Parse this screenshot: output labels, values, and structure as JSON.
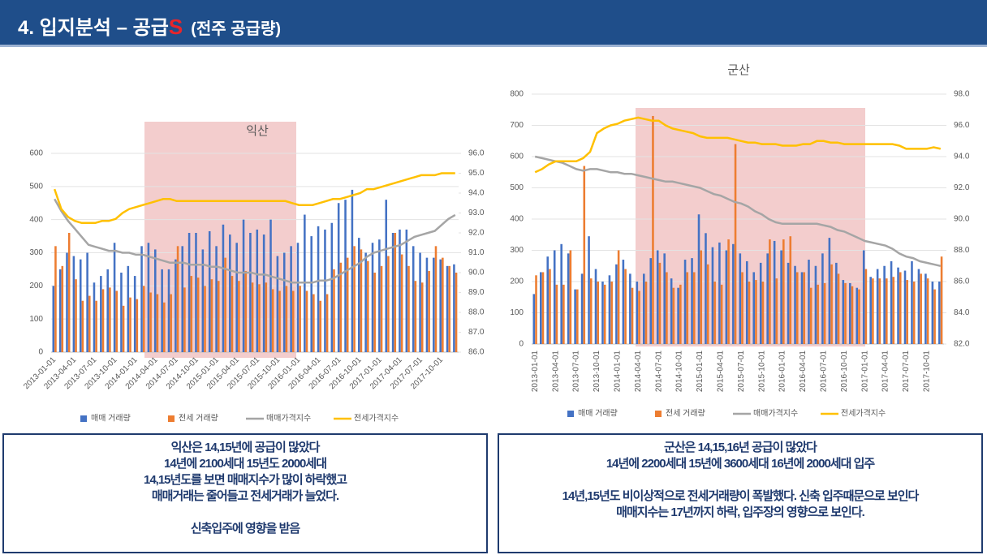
{
  "header": {
    "title": "4. 입지분석 – 공급",
    "mark": "S",
    "subtitle": "(전주 공급량)"
  },
  "notes": [
    {
      "lines": [
        "익산은 14,15년에 공급이 많았다",
        "14년에 2100세대 15년도 2000세대",
        "14,15년도를 보면 매매지수가 많이 하락했고",
        "매매거래는 줄어들고 전세거래가 늘었다.",
        "신축입주에 영향을 받음"
      ]
    },
    {
      "lines": [
        "군산은 14,15,16년 공급이 많았다",
        "14년에 2200세대 15년에 3600세대 16년에 2000세대 입주",
        "14년,15년도 비이상적으로 전세거래량이 폭발했다. 신축 입주때문으로 보인다",
        "매매지수는 17년까지 하락, 입주장의 영향으로 보인다."
      ]
    }
  ],
  "chart_data": [
    {
      "type": "bar",
      "annotation": "익산",
      "categories": [
        "2013-01-01",
        null,
        null,
        "2013-04-01",
        null,
        null,
        "2013-07-01",
        null,
        null,
        "2013-10-01",
        null,
        null,
        "2014-01-01",
        null,
        null,
        "2014-04-01",
        null,
        null,
        "2014-07-01",
        null,
        null,
        "2014-10-01",
        null,
        null,
        "2015-01-01",
        null,
        null,
        "2015-04-01",
        null,
        null,
        "2015-07-01",
        null,
        null,
        "2015-10-01",
        null,
        null,
        "2016-01-01",
        null,
        null,
        "2016-04-01",
        null,
        null,
        "2016-07-01",
        null,
        null,
        "2016-10-01",
        null,
        null,
        "2017-01-01",
        null,
        null,
        "2017-04-01",
        null,
        null,
        "2017-07-01",
        null,
        null,
        "2017-10-01",
        null,
        null
      ],
      "series": [
        {
          "name": "매매 거래량",
          "type": "bar",
          "color": "#4472c4",
          "values": [
            200,
            250,
            300,
            290,
            280,
            300,
            210,
            230,
            250,
            330,
            240,
            260,
            230,
            320,
            330,
            310,
            250,
            250,
            280,
            320,
            360,
            360,
            310,
            365,
            320,
            385,
            355,
            330,
            400,
            360,
            370,
            355,
            400,
            290,
            300,
            320,
            330,
            415,
            350,
            380,
            370,
            390,
            450,
            460,
            490,
            345,
            300,
            330,
            340,
            460,
            360,
            370,
            370,
            320,
            300,
            285,
            285,
            280,
            260,
            265
          ]
        },
        {
          "name": "전세 거래량",
          "type": "bar",
          "color": "#ed7d31",
          "values": [
            320,
            260,
            360,
            220,
            155,
            170,
            155,
            190,
            195,
            185,
            140,
            165,
            160,
            200,
            180,
            175,
            150,
            175,
            320,
            195,
            230,
            225,
            200,
            220,
            215,
            285,
            230,
            215,
            245,
            210,
            205,
            210,
            190,
            185,
            200,
            185,
            200,
            185,
            175,
            155,
            175,
            250,
            270,
            285,
            320,
            310,
            275,
            240,
            260,
            290,
            360,
            295,
            260,
            215,
            210,
            245,
            320,
            285,
            260,
            240
          ]
        },
        {
          "name": "매매가격지수",
          "type": "line",
          "axis": "y2",
          "color": "#a5a5a5",
          "values": [
            93.7,
            93.1,
            92.6,
            92.2,
            91.8,
            91.4,
            91.3,
            91.2,
            91.1,
            91.1,
            91.0,
            91.0,
            90.9,
            90.9,
            90.8,
            90.7,
            90.6,
            90.5,
            90.5,
            90.5,
            90.4,
            90.4,
            90.4,
            90.3,
            90.3,
            90.2,
            90.1,
            90.0,
            90.0,
            90.0,
            89.9,
            89.9,
            89.8,
            89.7,
            89.6,
            89.5,
            89.5,
            89.5,
            89.5,
            89.6,
            89.6,
            89.7,
            89.9,
            90.1,
            90.3,
            90.5,
            90.8,
            91.0,
            91.1,
            91.2,
            91.3,
            91.4,
            91.6,
            91.8,
            91.9,
            92.0,
            92.1,
            92.4,
            92.7,
            92.9
          ]
        },
        {
          "name": "전세가격지수",
          "type": "line",
          "axis": "y2",
          "color": "#ffc000",
          "values": [
            94.2,
            93.2,
            92.8,
            92.6,
            92.5,
            92.5,
            92.5,
            92.6,
            92.6,
            92.7,
            93.0,
            93.2,
            93.3,
            93.4,
            93.5,
            93.6,
            93.7,
            93.7,
            93.6,
            93.6,
            93.6,
            93.6,
            93.6,
            93.6,
            93.6,
            93.6,
            93.6,
            93.6,
            93.6,
            93.6,
            93.6,
            93.6,
            93.6,
            93.6,
            93.6,
            93.5,
            93.4,
            93.4,
            93.4,
            93.5,
            93.6,
            93.7,
            93.7,
            93.8,
            93.9,
            94.0,
            94.2,
            94.2,
            94.3,
            94.4,
            94.5,
            94.6,
            94.7,
            94.8,
            94.9,
            94.9,
            94.9,
            95.0,
            95.0,
            95.0
          ]
        }
      ],
      "ylim": [
        0,
        600
      ],
      "yticks": [
        0,
        100,
        200,
        300,
        400,
        500,
        600
      ],
      "y2lim": [
        86,
        96
      ],
      "y2ticks": [
        {
          "value": 86,
          "label": "86.0"
        },
        {
          "value": 87,
          "label": "87.0"
        },
        {
          "value": 88,
          "label": "88.0"
        },
        {
          "value": 89,
          "label": "89.0"
        },
        {
          "value": 90,
          "label": "90.0"
        },
        {
          "value": 91,
          "label": "91.0"
        },
        {
          "value": 92,
          "label": "92.0"
        },
        {
          "value": 93,
          "label": "93.0"
        },
        {
          "value": 94,
          "label": "94.0"
        },
        {
          "value": 95,
          "label": "95.0"
        },
        {
          "value": 96,
          "label": "96.0"
        }
      ],
      "grid": true,
      "legend": "bottom"
    },
    {
      "type": "bar",
      "title": "군산",
      "categories": [
        "2013-01-01",
        null,
        null,
        "2013-04-01",
        null,
        null,
        "2013-07-01",
        null,
        null,
        "2013-10-01",
        null,
        null,
        "2014-01-01",
        null,
        null,
        "2014-04-01",
        null,
        null,
        "2014-07-01",
        null,
        null,
        "2014-10-01",
        null,
        null,
        "2015-01-01",
        null,
        null,
        "2015-04-01",
        null,
        null,
        "2015-07-01",
        null,
        null,
        "2015-10-01",
        null,
        null,
        "2016-01-01",
        null,
        null,
        "2016-04-01",
        null,
        null,
        "2016-07-01",
        null,
        null,
        "2016-10-01",
        null,
        null,
        "2017-01-01",
        null,
        null,
        "2017-04-01",
        null,
        null,
        "2017-07-01",
        null,
        null,
        "2017-10-01",
        null,
        null
      ],
      "series": [
        {
          "name": "매매 거래량",
          "type": "bar",
          "color": "#4472c4",
          "values": [
            160,
            230,
            280,
            300,
            320,
            290,
            175,
            225,
            345,
            240,
            200,
            220,
            255,
            270,
            225,
            200,
            225,
            275,
            300,
            290,
            210,
            180,
            270,
            275,
            415,
            355,
            310,
            325,
            300,
            320,
            290,
            265,
            230,
            260,
            290,
            330,
            300,
            260,
            250,
            230,
            270,
            250,
            290,
            340,
            260,
            205,
            195,
            180,
            300,
            215,
            240,
            250,
            265,
            245,
            235,
            265,
            240,
            225,
            200,
            200
          ]
        },
        {
          "name": "전세 거래량",
          "type": "bar",
          "color": "#ed7d31",
          "values": [
            220,
            230,
            240,
            190,
            190,
            300,
            175,
            570,
            210,
            200,
            190,
            200,
            300,
            240,
            180,
            170,
            200,
            730,
            260,
            230,
            180,
            190,
            230,
            230,
            300,
            255,
            200,
            190,
            335,
            640,
            230,
            200,
            205,
            200,
            335,
            210,
            335,
            345,
            230,
            230,
            180,
            190,
            195,
            255,
            225,
            195,
            185,
            175,
            240,
            210,
            210,
            210,
            215,
            230,
            205,
            200,
            225,
            210,
            175,
            280
          ]
        },
        {
          "name": "매매가격지수",
          "type": "line",
          "axis": "y2",
          "color": "#a5a5a5",
          "values": [
            94.0,
            93.9,
            93.8,
            93.7,
            93.6,
            93.4,
            93.2,
            93.1,
            93.2,
            93.2,
            93.1,
            93.0,
            93.0,
            92.9,
            92.9,
            92.8,
            92.7,
            92.6,
            92.5,
            92.4,
            92.4,
            92.3,
            92.2,
            92.1,
            92.0,
            91.8,
            91.6,
            91.5,
            91.3,
            91.1,
            91.0,
            90.8,
            90.5,
            90.3,
            90.0,
            89.8,
            89.7,
            89.7,
            89.7,
            89.7,
            89.7,
            89.7,
            89.6,
            89.5,
            89.3,
            89.2,
            89.0,
            88.8,
            88.6,
            88.5,
            88.4,
            88.3,
            88.1,
            87.8,
            87.6,
            87.5,
            87.3,
            87.2,
            87.1,
            87.0
          ]
        },
        {
          "name": "전세가격지수",
          "type": "line",
          "axis": "y2",
          "color": "#ffc000",
          "values": [
            93.0,
            93.2,
            93.5,
            93.7,
            93.7,
            93.7,
            93.7,
            93.9,
            94.3,
            95.5,
            95.8,
            96.0,
            96.1,
            96.3,
            96.4,
            96.5,
            96.4,
            96.3,
            96.3,
            96.0,
            95.8,
            95.7,
            95.6,
            95.5,
            95.3,
            95.2,
            95.2,
            95.2,
            95.2,
            95.1,
            95.0,
            94.9,
            94.9,
            94.8,
            94.8,
            94.8,
            94.7,
            94.7,
            94.7,
            94.8,
            94.8,
            95.0,
            95.0,
            94.9,
            94.9,
            94.8,
            94.8,
            94.8,
            94.8,
            94.8,
            94.8,
            94.8,
            94.8,
            94.7,
            94.5,
            94.5,
            94.5,
            94.5,
            94.6,
            94.5
          ]
        }
      ],
      "ylim": [
        0,
        800
      ],
      "yticks": [
        0,
        100,
        200,
        300,
        400,
        500,
        600,
        700,
        800
      ],
      "y2lim": [
        82,
        98
      ],
      "y2ticks": [
        {
          "value": 82,
          "label": "82.0"
        },
        {
          "value": 84,
          "label": "84.0"
        },
        {
          "value": 86,
          "label": "86.0"
        },
        {
          "value": 88,
          "label": "88.0"
        },
        {
          "value": 90,
          "label": "90.0"
        },
        {
          "value": 92,
          "label": "92.0"
        },
        {
          "value": 94,
          "label": "94.0"
        },
        {
          "value": 96,
          "label": "96.0"
        },
        {
          "value": 98,
          "label": "98.0"
        }
      ],
      "grid": true,
      "legend": "bottom"
    }
  ]
}
